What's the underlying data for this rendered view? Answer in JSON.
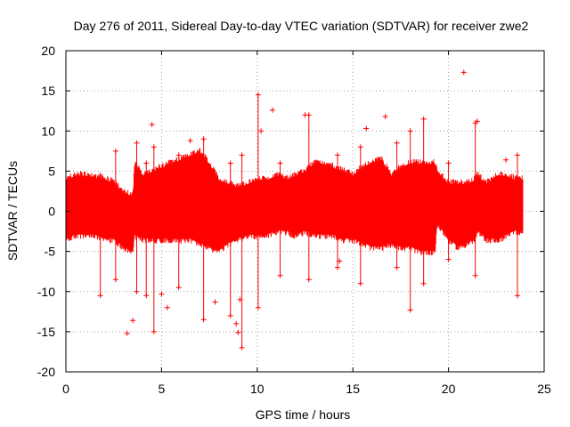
{
  "chart_data": {
    "type": "scatter",
    "title": "Day 276 of 2011, Sidereal Day-to-day VTEC variation (SDTVAR) for receiver zwe2",
    "xlabel": "GPS time / hours",
    "ylabel": "SDTVAR / TECUs",
    "xlim": [
      0,
      25
    ],
    "ylim": [
      -20,
      20
    ],
    "xticks": [
      0,
      5,
      10,
      15,
      20,
      25
    ],
    "yticks": [
      -20,
      -15,
      -10,
      -5,
      0,
      5,
      10,
      15,
      20
    ],
    "xtick_labels": [
      "0",
      "5",
      "10",
      "15",
      "20",
      "25"
    ],
    "ytick_labels": [
      "-20",
      "-15",
      "-10",
      "-5",
      "0",
      "5",
      "10",
      "15",
      "20"
    ],
    "grid": true,
    "marker": "+",
    "color": "#ff0000",
    "series": [
      {
        "name": "zwe2",
        "envelope": {
          "x": [
            0.0,
            0.5,
            1.0,
            1.5,
            2.0,
            2.5,
            3.0,
            3.5,
            3.6,
            4.0,
            4.5,
            5.0,
            5.5,
            6.0,
            6.5,
            7.0,
            7.5,
            8.0,
            8.5,
            9.0,
            9.5,
            10.0,
            10.5,
            11.0,
            11.5,
            12.0,
            12.5,
            13.0,
            13.5,
            14.0,
            14.5,
            15.0,
            15.5,
            16.0,
            16.5,
            17.0,
            17.5,
            18.0,
            18.5,
            19.0,
            19.3,
            19.4,
            20.0,
            20.5,
            21.0,
            21.4,
            21.5,
            22.0,
            22.5,
            22.7,
            23.0,
            23.5,
            23.9
          ],
          "upper": [
            4.5,
            5.0,
            5.0,
            4.8,
            4.5,
            4.2,
            2.8,
            2.5,
            6.5,
            5.0,
            5.5,
            6.0,
            6.5,
            7.0,
            7.5,
            8.0,
            6.5,
            4.5,
            4.0,
            3.5,
            4.0,
            4.5,
            4.5,
            5.0,
            4.5,
            5.0,
            5.5,
            6.5,
            6.5,
            6.0,
            5.5,
            5.0,
            6.0,
            6.5,
            7.0,
            5.0,
            6.0,
            6.5,
            6.5,
            6.5,
            6.5,
            5.5,
            4.0,
            4.0,
            4.0,
            4.5,
            5.0,
            4.0,
            5.0,
            5.0,
            5.0,
            4.5,
            4.5
          ],
          "lower": [
            -4.0,
            -3.5,
            -3.5,
            -3.5,
            -4.0,
            -4.0,
            -5.0,
            -5.5,
            -3.5,
            -4.0,
            -4.0,
            -4.0,
            -4.0,
            -4.0,
            -4.0,
            -4.5,
            -5.0,
            -5.5,
            -4.5,
            -4.0,
            -3.5,
            -3.5,
            -3.5,
            -3.0,
            -3.0,
            -3.5,
            -3.0,
            -3.5,
            -3.5,
            -3.5,
            -4.0,
            -4.0,
            -4.5,
            -5.0,
            -5.0,
            -4.5,
            -5.0,
            -5.0,
            -5.5,
            -5.5,
            -5.5,
            -2.0,
            -4.0,
            -5.0,
            -4.5,
            -4.0,
            -3.0,
            -4.0,
            -4.0,
            -4.0,
            -3.5,
            -3.0,
            -3.0
          ]
        },
        "outliers": [
          {
            "x": 3.2,
            "y": -15.2
          },
          {
            "x": 3.5,
            "y": -13.6
          },
          {
            "x": 4.5,
            "y": 10.8
          },
          {
            "x": 5.0,
            "y": -10.3
          },
          {
            "x": 5.3,
            "y": -12.0
          },
          {
            "x": 6.5,
            "y": 8.8
          },
          {
            "x": 7.8,
            "y": -11.3
          },
          {
            "x": 9.0,
            "y": -15.1
          },
          {
            "x": 9.1,
            "y": -11.0
          },
          {
            "x": 8.9,
            "y": -14.0
          },
          {
            "x": 10.2,
            "y": 10.0
          },
          {
            "x": 10.8,
            "y": 12.6
          },
          {
            "x": 12.5,
            "y": 12.0
          },
          {
            "x": 14.3,
            "y": -6.2
          },
          {
            "x": 15.7,
            "y": 10.3
          },
          {
            "x": 16.7,
            "y": 11.8
          },
          {
            "x": 20.8,
            "y": 17.3
          },
          {
            "x": 21.5,
            "y": 11.2
          },
          {
            "x": 23.0,
            "y": 6.4
          }
        ],
        "spikes": [
          {
            "x": 1.8,
            "y_min": -10.5,
            "y_max": 4.5
          },
          {
            "x": 2.6,
            "y_min": -8.5,
            "y_max": 7.5
          },
          {
            "x": 3.7,
            "y_min": -10.0,
            "y_max": 8.5
          },
          {
            "x": 4.2,
            "y_min": -10.5,
            "y_max": 6.0
          },
          {
            "x": 4.6,
            "y_min": -15.0,
            "y_max": 8.0
          },
          {
            "x": 5.9,
            "y_min": -9.5,
            "y_max": 7.0
          },
          {
            "x": 7.2,
            "y_min": -13.5,
            "y_max": 9.0
          },
          {
            "x": 8.6,
            "y_min": -13.0,
            "y_max": 6.0
          },
          {
            "x": 9.2,
            "y_min": -17.0,
            "y_max": 7.0
          },
          {
            "x": 10.05,
            "y_min": -12.0,
            "y_max": 14.5
          },
          {
            "x": 11.2,
            "y_min": -8.0,
            "y_max": 6.0
          },
          {
            "x": 12.7,
            "y_min": -8.5,
            "y_max": 12.0
          },
          {
            "x": 14.2,
            "y_min": -7.0,
            "y_max": 7.0
          },
          {
            "x": 15.4,
            "y_min": -9.0,
            "y_max": 8.0
          },
          {
            "x": 17.3,
            "y_min": -7.0,
            "y_max": 8.5
          },
          {
            "x": 18.0,
            "y_min": -12.3,
            "y_max": 10.0
          },
          {
            "x": 18.7,
            "y_min": -9.0,
            "y_max": 11.5
          },
          {
            "x": 20.0,
            "y_min": -6.0,
            "y_max": 6.0
          },
          {
            "x": 21.4,
            "y_min": -8.0,
            "y_max": 11.0
          },
          {
            "x": 23.6,
            "y_min": -10.5,
            "y_max": 7.0
          }
        ]
      }
    ]
  }
}
